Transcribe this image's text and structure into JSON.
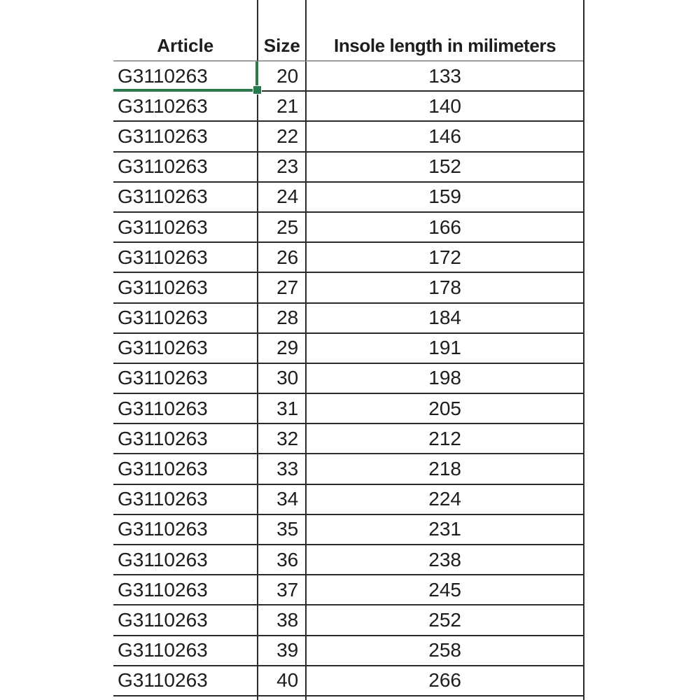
{
  "app": {
    "type": "spreadsheet-size-chart"
  },
  "table": {
    "columns": [
      {
        "label": "Article"
      },
      {
        "label": "Size"
      },
      {
        "label": "Insole length in milimeters"
      }
    ],
    "rows": [
      {
        "article": "G3110263",
        "size": "20",
        "insole": "133"
      },
      {
        "article": "G3110263",
        "size": "21",
        "insole": "140"
      },
      {
        "article": "G3110263",
        "size": "22",
        "insole": "146"
      },
      {
        "article": "G3110263",
        "size": "23",
        "insole": "152"
      },
      {
        "article": "G3110263",
        "size": "24",
        "insole": "159"
      },
      {
        "article": "G3110263",
        "size": "25",
        "insole": "166"
      },
      {
        "article": "G3110263",
        "size": "26",
        "insole": "172"
      },
      {
        "article": "G3110263",
        "size": "27",
        "insole": "178"
      },
      {
        "article": "G3110263",
        "size": "28",
        "insole": "184"
      },
      {
        "article": "G3110263",
        "size": "29",
        "insole": "191"
      },
      {
        "article": "G3110263",
        "size": "30",
        "insole": "198"
      },
      {
        "article": "G3110263",
        "size": "31",
        "insole": "205"
      },
      {
        "article": "G3110263",
        "size": "32",
        "insole": "212"
      },
      {
        "article": "G3110263",
        "size": "33",
        "insole": "218"
      },
      {
        "article": "G3110263",
        "size": "34",
        "insole": "224"
      },
      {
        "article": "G3110263",
        "size": "35",
        "insole": "231"
      },
      {
        "article": "G3110263",
        "size": "36",
        "insole": "238"
      },
      {
        "article": "G3110263",
        "size": "37",
        "insole": "245"
      },
      {
        "article": "G3110263",
        "size": "38",
        "insole": "252"
      },
      {
        "article": "G3110263",
        "size": "39",
        "insole": "258"
      },
      {
        "article": "G3110263",
        "size": "40",
        "insole": "266"
      }
    ]
  },
  "selection": {
    "row_index": 0,
    "column": "article",
    "value": "G3110263"
  },
  "colors": {
    "grid_line": "#2b2b2b",
    "header_underline": "#9e9e9e",
    "selection_green": "#2a7a4d",
    "text": "#1d1d1d",
    "background": "#ffffff"
  }
}
